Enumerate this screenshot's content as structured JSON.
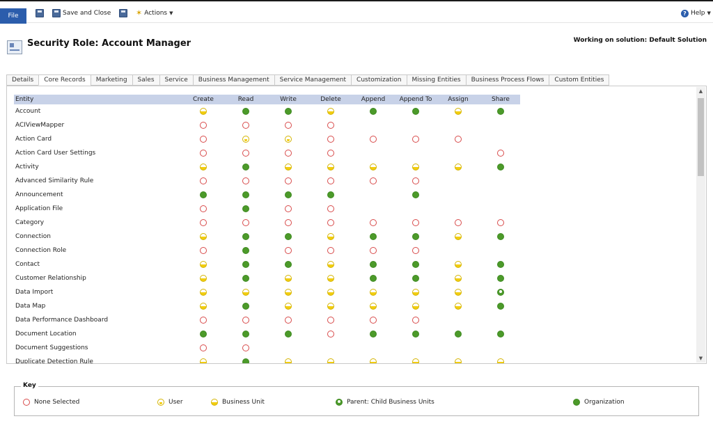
{
  "toolbar": {
    "file": "File",
    "save_close": "Save and Close",
    "actions": "Actions",
    "help": "Help"
  },
  "header": {
    "title": "Security Role: Account Manager",
    "solution": "Working on solution: Default Solution"
  },
  "tabs": [
    "Details",
    "Core Records",
    "Marketing",
    "Sales",
    "Service",
    "Business Management",
    "Service Management",
    "Customization",
    "Missing Entities",
    "Business Process Flows",
    "Custom Entities"
  ],
  "active_tab": "Core Records",
  "grid": {
    "columns": [
      "Entity",
      "Create",
      "Read",
      "Write",
      "Delete",
      "Append",
      "Append To",
      "Assign",
      "Share"
    ],
    "rows": [
      {
        "entity": "Account",
        "levels": [
          "bu",
          "org",
          "org",
          "bu",
          "org",
          "org",
          "bu",
          "org"
        ]
      },
      {
        "entity": "ACIViewMapper",
        "levels": [
          "none",
          "none",
          "none",
          "none",
          "",
          "",
          "",
          ""
        ]
      },
      {
        "entity": "Action Card",
        "levels": [
          "none",
          "user",
          "user",
          "none",
          "none",
          "none",
          "none",
          ""
        ]
      },
      {
        "entity": "Action Card User Settings",
        "levels": [
          "none",
          "none",
          "none",
          "none",
          "",
          "",
          "",
          "none"
        ]
      },
      {
        "entity": "Activity",
        "levels": [
          "bu",
          "org",
          "bu",
          "bu",
          "bu",
          "bu",
          "bu",
          "org"
        ]
      },
      {
        "entity": "Advanced Similarity Rule",
        "levels": [
          "none",
          "none",
          "none",
          "none",
          "none",
          "none",
          "",
          ""
        ]
      },
      {
        "entity": "Announcement",
        "levels": [
          "org",
          "org",
          "org",
          "org",
          "",
          "org",
          "",
          ""
        ]
      },
      {
        "entity": "Application File",
        "levels": [
          "none",
          "org",
          "none",
          "none",
          "",
          "",
          "",
          ""
        ]
      },
      {
        "entity": "Category",
        "levels": [
          "none",
          "none",
          "none",
          "none",
          "none",
          "none",
          "none",
          "none"
        ]
      },
      {
        "entity": "Connection",
        "levels": [
          "bu",
          "org",
          "org",
          "bu",
          "org",
          "org",
          "bu",
          "org"
        ]
      },
      {
        "entity": "Connection Role",
        "levels": [
          "none",
          "org",
          "none",
          "none",
          "none",
          "none",
          "",
          ""
        ]
      },
      {
        "entity": "Contact",
        "levels": [
          "bu",
          "org",
          "org",
          "bu",
          "org",
          "org",
          "bu",
          "org"
        ]
      },
      {
        "entity": "Customer Relationship",
        "levels": [
          "bu",
          "org",
          "bu",
          "bu",
          "org",
          "org",
          "bu",
          "org"
        ]
      },
      {
        "entity": "Data Import",
        "levels": [
          "bu",
          "bu",
          "bu",
          "bu",
          "bu",
          "bu",
          "bu",
          "pc"
        ]
      },
      {
        "entity": "Data Map",
        "levels": [
          "bu",
          "org",
          "bu",
          "bu",
          "bu",
          "bu",
          "bu",
          "org"
        ]
      },
      {
        "entity": "Data Performance Dashboard",
        "levels": [
          "none",
          "none",
          "none",
          "none",
          "none",
          "none",
          "",
          ""
        ]
      },
      {
        "entity": "Document Location",
        "levels": [
          "org",
          "org",
          "org",
          "none",
          "org",
          "org",
          "org",
          "org"
        ]
      },
      {
        "entity": "Document Suggestions",
        "levels": [
          "none",
          "none",
          "",
          "",
          "",
          "",
          "",
          ""
        ]
      },
      {
        "entity": "Duplicate Detection Rule",
        "levels": [
          "bu",
          "org",
          "bu",
          "bu",
          "bu",
          "bu",
          "bu",
          "bu"
        ]
      }
    ]
  },
  "key": {
    "label": "Key",
    "items": [
      {
        "level": "none",
        "text": "None Selected"
      },
      {
        "level": "user",
        "text": "User"
      },
      {
        "level": "bu",
        "text": "Business Unit"
      },
      {
        "level": "pc",
        "text": "Parent: Child Business Units"
      },
      {
        "level": "org",
        "text": "Organization"
      }
    ]
  },
  "colors": {
    "organization": "#4c9a2a",
    "business_unit": "#f2cd10",
    "none": "#d84a4a",
    "header_band": "#c8d2e8",
    "file_button": "#2b5dac"
  }
}
